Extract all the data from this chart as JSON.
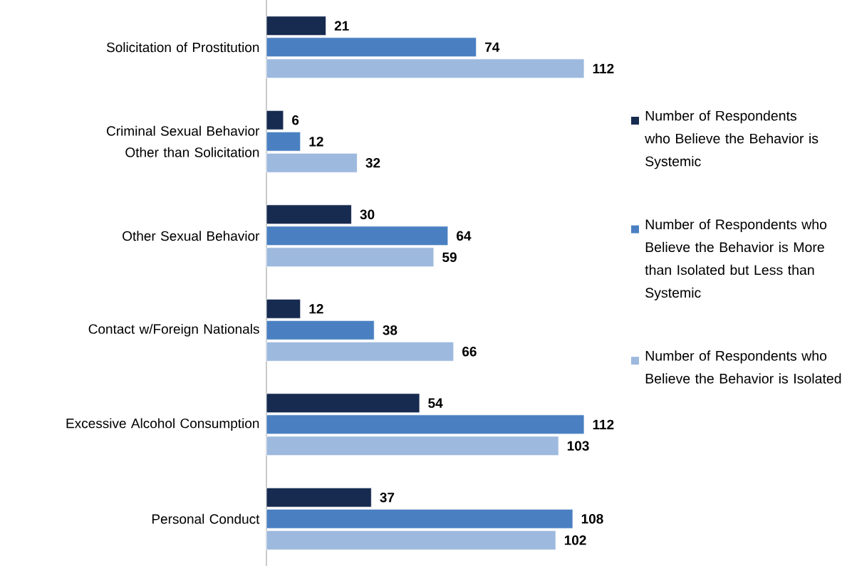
{
  "chart_data": {
    "type": "bar",
    "orientation": "horizontal",
    "data_labels": true,
    "legend": "right",
    "categories": [
      "Solicitation of Prostitution",
      "Criminal Sexual Behavior Other than Solicitation",
      "Other Sexual Behavior",
      "Contact w/Foreign Nationals",
      "Excessive Alcohol Consumption",
      "Personal Conduct"
    ],
    "series": [
      {
        "name": "Number of Respondents who Believe the Behavior is Systemic",
        "color": "#172b50",
        "values": [
          21,
          6,
          30,
          12,
          54,
          37
        ]
      },
      {
        "name": "Number of Respondents who Believe the Behavior is More than Isolated but Less than Systemic",
        "color": "#4a80c2",
        "values": [
          74,
          12,
          64,
          38,
          112,
          108
        ]
      },
      {
        "name": "Number of Respondents who Believe the Behavior is Isolated",
        "color": "#9db9de",
        "values": [
          112,
          32,
          59,
          66,
          103,
          102
        ]
      }
    ]
  }
}
